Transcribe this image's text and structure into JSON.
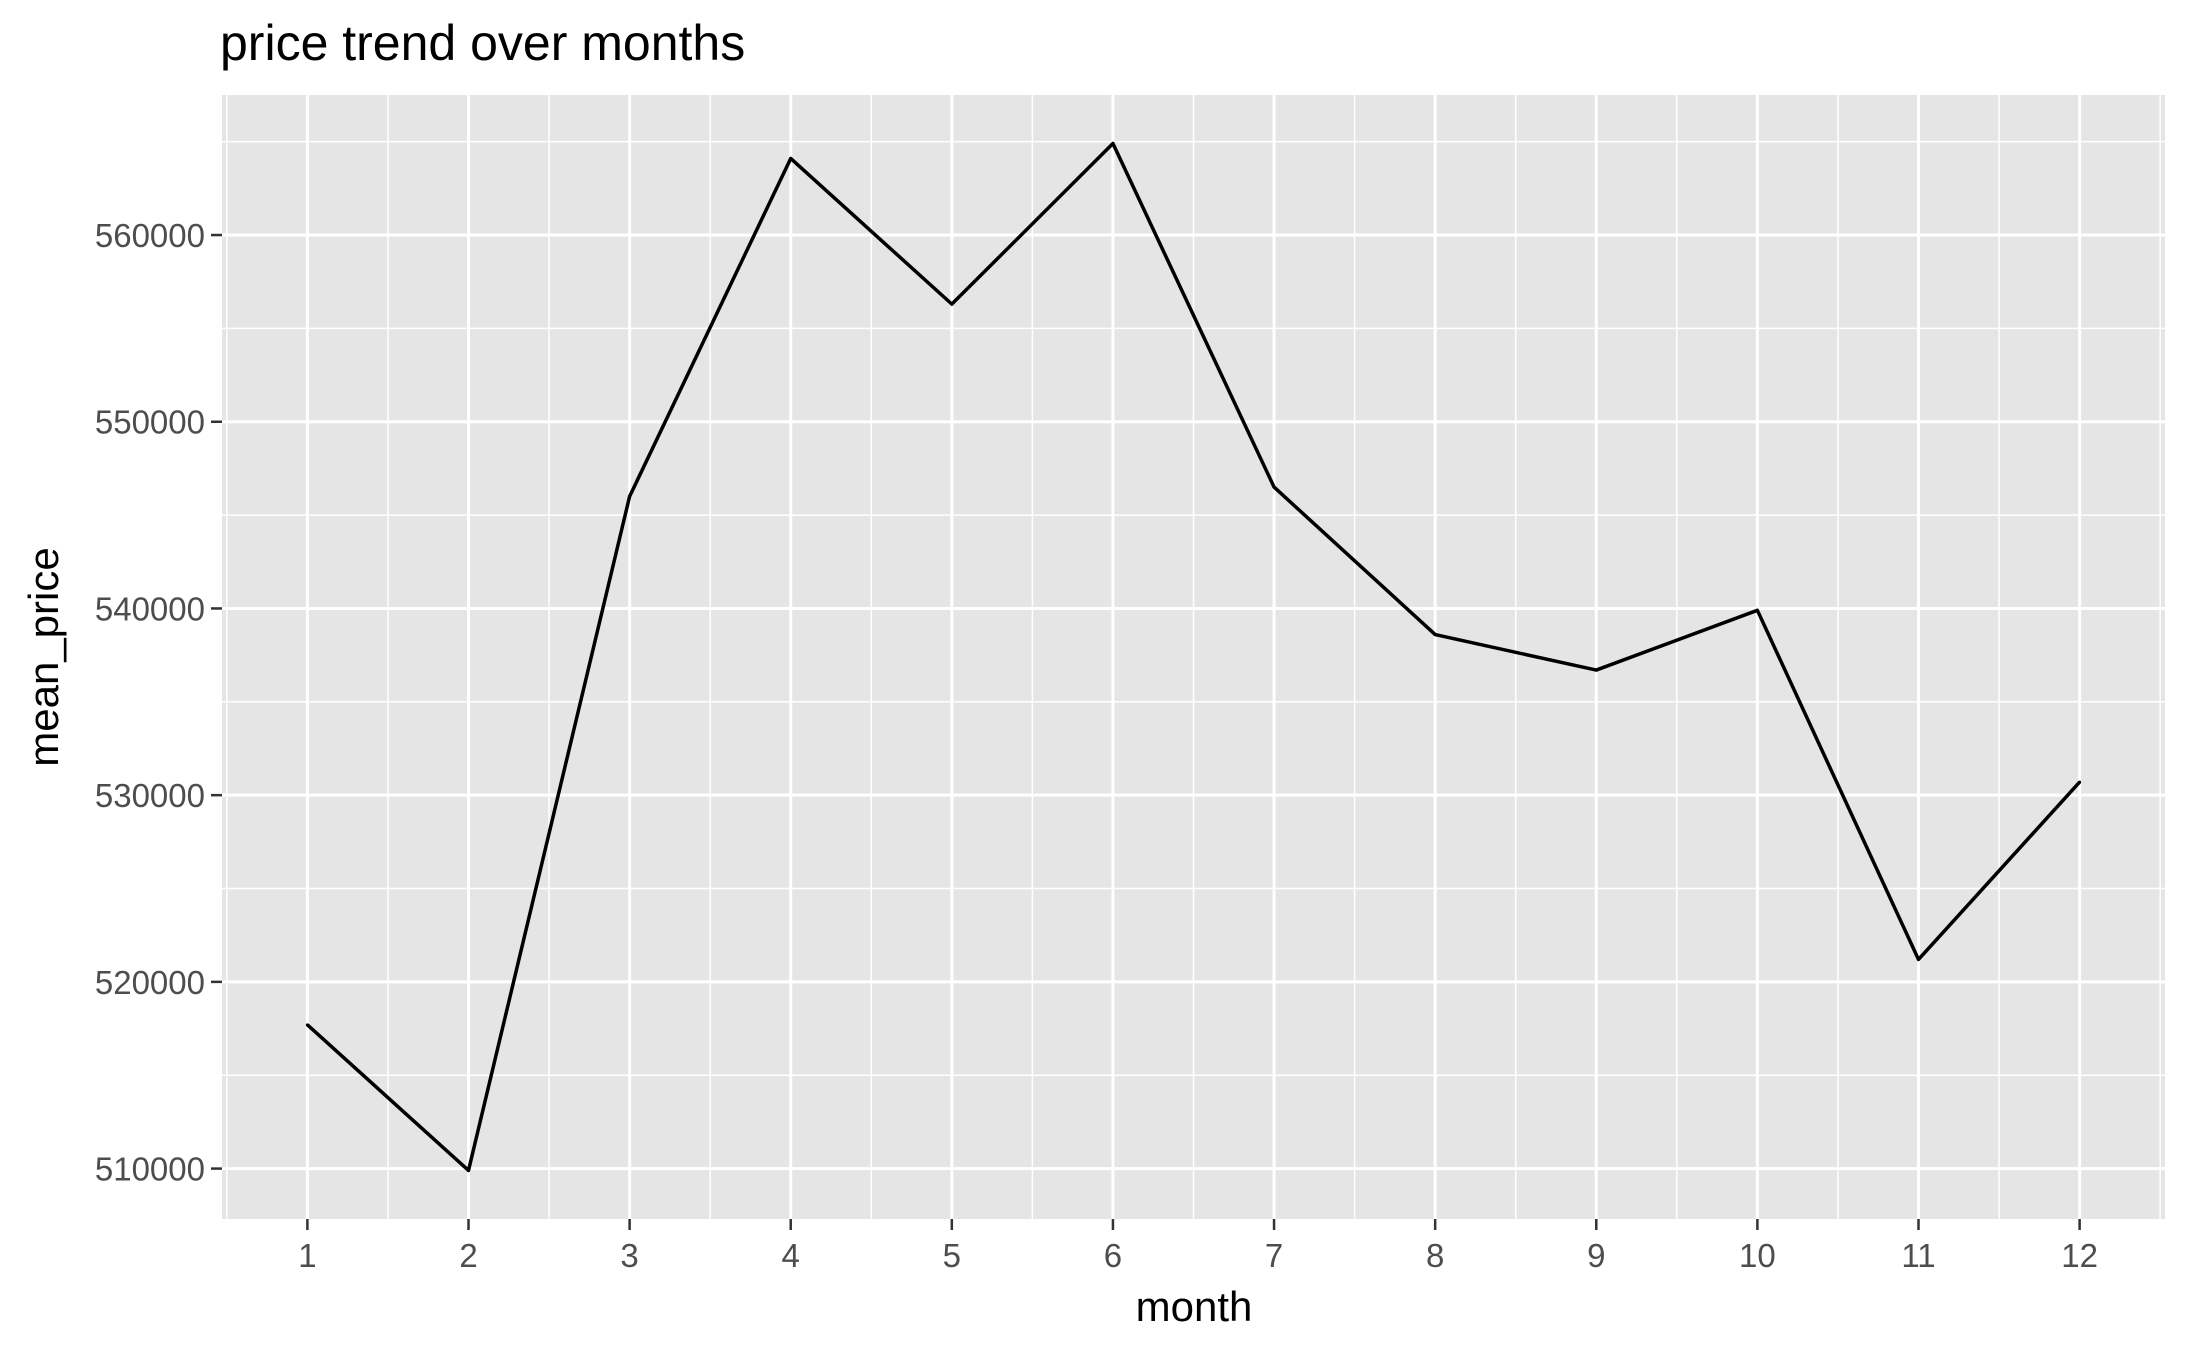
{
  "chart_data": {
    "type": "line",
    "title": "price trend over months",
    "xlabel": "month",
    "ylabel": "mean_price",
    "x": [
      1,
      2,
      3,
      4,
      5,
      6,
      7,
      8,
      9,
      10,
      11,
      12
    ],
    "values": [
      517700,
      509900,
      546000,
      564100,
      556300,
      564900,
      546500,
      538600,
      536700,
      539900,
      521200,
      530700
    ],
    "x_ticks": [
      "1",
      "2",
      "3",
      "4",
      "5",
      "6",
      "7",
      "8",
      "9",
      "10",
      "11",
      "12"
    ],
    "y_ticks": [
      "510000",
      "520000",
      "530000",
      "540000",
      "550000",
      "560000"
    ],
    "xlim": [
      0.47,
      12.53
    ],
    "ylim": [
      507300,
      567500
    ],
    "grid": true,
    "colors": {
      "panel": "#e5e5e5",
      "grid": "#ffffff",
      "line": "#000000",
      "tick_text": "#4d4d4d"
    }
  }
}
